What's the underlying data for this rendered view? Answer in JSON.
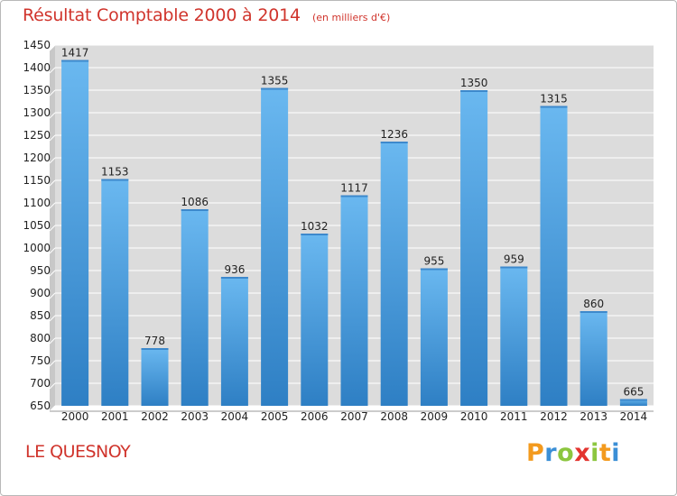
{
  "header": {
    "title": "Résultat Comptable 2000 à 2014",
    "subtitle": "(en milliers d'€)"
  },
  "commune": "LE QUESNOY",
  "logo": {
    "letters": [
      "P",
      "r",
      "o",
      "x",
      "i",
      "t",
      "i"
    ],
    "colors": [
      "#f39a1e",
      "#3b8fd6",
      "#8cc63f",
      "#e3342f",
      "#8cc63f",
      "#f39a1e",
      "#3b8fd6"
    ]
  },
  "colors": {
    "bar_light": "#6ab8f0",
    "bar_dark": "#2e7fc4",
    "accent": "#d0342c"
  },
  "chart_data": {
    "type": "bar",
    "title": "Résultat Comptable 2000 à 2014",
    "subtitle": "(en milliers d'€)",
    "categories": [
      "2000",
      "2001",
      "2002",
      "2003",
      "2004",
      "2005",
      "2006",
      "2007",
      "2008",
      "2009",
      "2010",
      "2011",
      "2012",
      "2013",
      "2014"
    ],
    "values": [
      1417,
      1153,
      778,
      1086,
      936,
      1355,
      1032,
      1117,
      1236,
      955,
      1350,
      959,
      1315,
      860,
      665
    ],
    "ylim": [
      650,
      1450
    ],
    "yticks": [
      650,
      700,
      750,
      800,
      850,
      900,
      950,
      1000,
      1050,
      1100,
      1150,
      1200,
      1250,
      1300,
      1350,
      1400,
      1450
    ],
    "grid": true
  }
}
